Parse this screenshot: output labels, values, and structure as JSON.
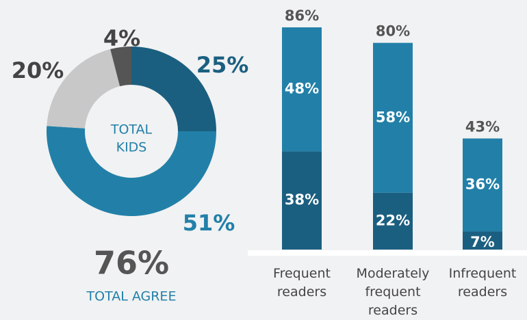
{
  "chart_data": [
    {
      "type": "pie",
      "values": [
        25,
        51,
        20,
        4
      ],
      "value_labels": [
        "25%",
        "51%",
        "20%",
        "4%"
      ],
      "colors": [
        "#1b5f80",
        "#2280a8",
        "#c8c8c8",
        "#555555"
      ],
      "center_label": [
        "TOTAL",
        "KIDS"
      ],
      "total": "76%",
      "total_label": "TOTAL AGREE"
    },
    {
      "type": "stacked_bar",
      "categories": [
        "Frequent readers",
        "Moderately frequent readers",
        "Infrequent readers"
      ],
      "series": [
        {
          "color": "#1b5f80",
          "values": [
            38,
            22,
            7
          ],
          "value_labels": [
            "38%",
            "22%",
            "7%"
          ]
        },
        {
          "color": "#2280a8",
          "values": [
            48,
            58,
            36
          ],
          "value_labels": [
            "48%",
            "58%",
            "36%"
          ]
        }
      ],
      "total_labels": [
        "86%",
        "80%",
        "43%"
      ],
      "ylim": [
        0,
        86
      ]
    }
  ]
}
